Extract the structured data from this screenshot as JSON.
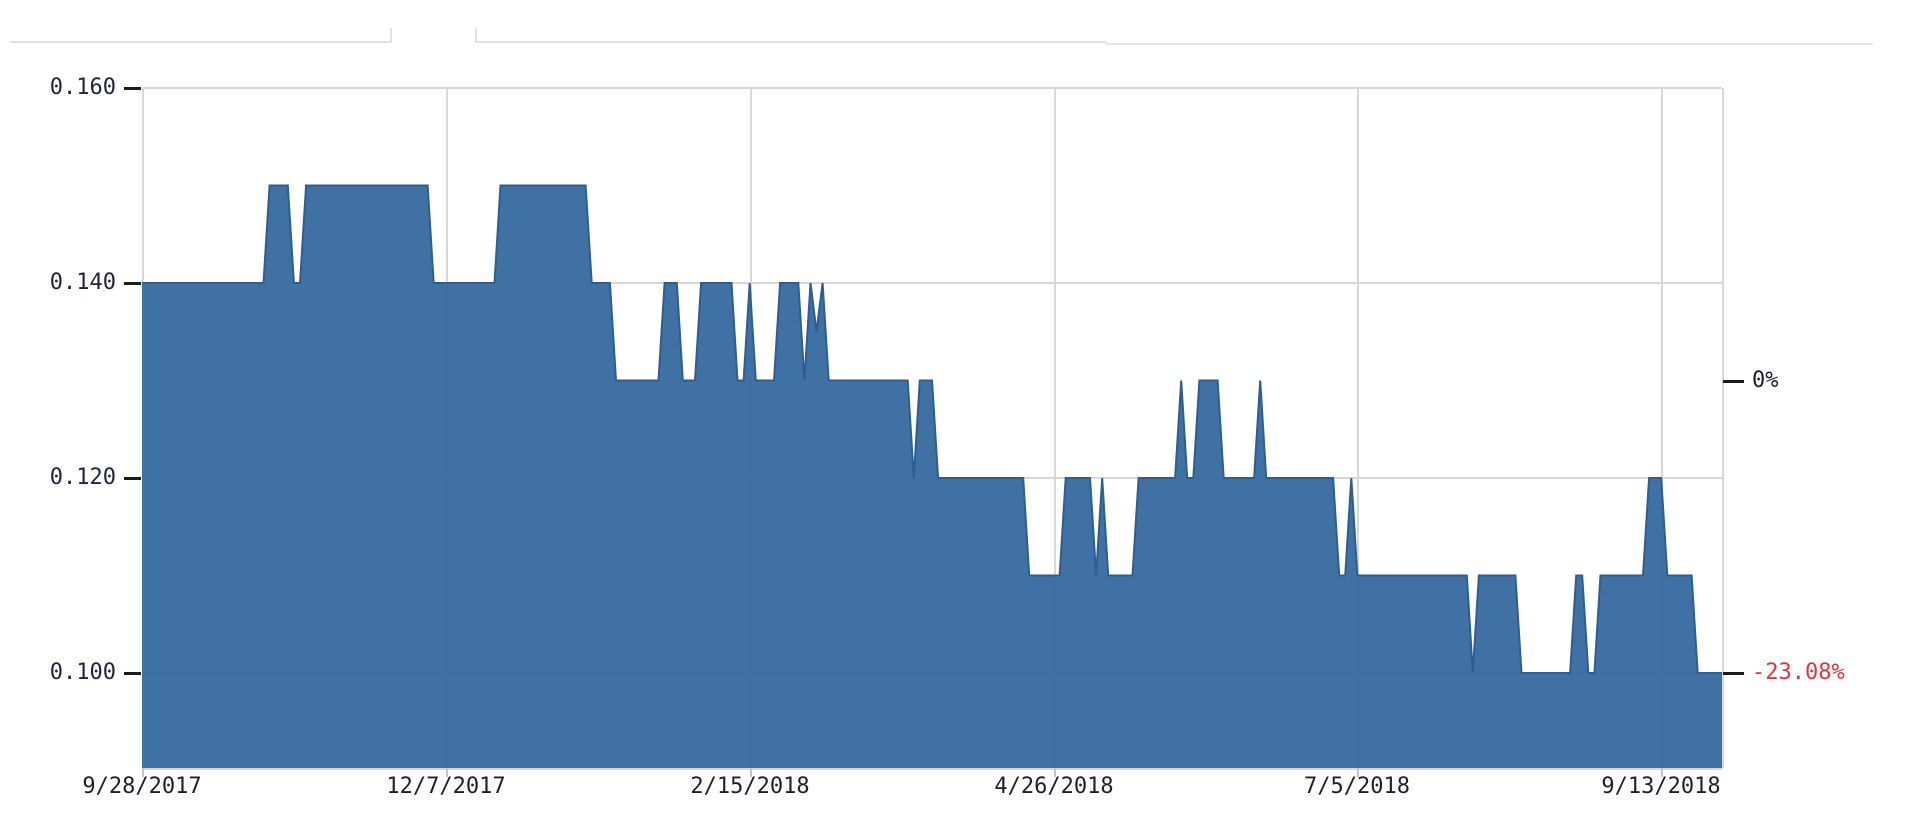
{
  "window": {
    "background": "#ffffff",
    "top_panel_edges": "two cut-off panel bottom borders and one lower right border"
  },
  "chart_data": {
    "type": "area",
    "title": "",
    "xlabel": "",
    "ylabel": "",
    "legend": "none",
    "grid": true,
    "x_tick_labels": [
      "9/28/2017",
      "12/7/2017",
      "2/15/2018",
      "4/26/2018",
      "7/5/2018",
      "9/13/2018"
    ],
    "x_tick_days": [
      0,
      50,
      100,
      150,
      200,
      250
    ],
    "y_tick_labels": [
      "0.100",
      "0.120",
      "0.140",
      "0.160"
    ],
    "y_ticks": [
      0.1,
      0.12,
      0.14,
      0.16
    ],
    "ylim": [
      0.09026,
      0.16
    ],
    "right_axis": {
      "zero_label": "0%",
      "zero_price": 0.13,
      "change_label": "-23.08%",
      "change_price": 0.1,
      "change_color": "#e2333f",
      "zero_color": "#1c1c2a"
    },
    "series": [
      {
        "name": "price",
        "color": "#3a6ca2",
        "stroke": "#2e5e91",
        "runs_days_value": [
          [
            21,
            0.14
          ],
          [
            4,
            0.15
          ],
          [
            2,
            0.14
          ],
          [
            21,
            0.15
          ],
          [
            11,
            0.14
          ],
          [
            15,
            0.15
          ],
          [
            4,
            0.14
          ],
          [
            8,
            0.13
          ],
          [
            3,
            0.14
          ],
          [
            3,
            0.13
          ],
          [
            6,
            0.14
          ],
          [
            2,
            0.13
          ],
          [
            1,
            0.14
          ],
          [
            4,
            0.13
          ],
          [
            4,
            0.14
          ],
          [
            1,
            0.13
          ],
          [
            1,
            0.14
          ],
          [
            1,
            0.135
          ],
          [
            1,
            0.14
          ],
          [
            14,
            0.13
          ],
          [
            1,
            0.12
          ],
          [
            3,
            0.13
          ],
          [
            15,
            0.12
          ],
          [
            6,
            0.11
          ],
          [
            5,
            0.12
          ],
          [
            1,
            0.11
          ],
          [
            1,
            0.12
          ],
          [
            5,
            0.11
          ],
          [
            7,
            0.12
          ],
          [
            1,
            0.13
          ],
          [
            2,
            0.12
          ],
          [
            4,
            0.13
          ],
          [
            6,
            0.12
          ],
          [
            1,
            0.13
          ],
          [
            12,
            0.12
          ],
          [
            2,
            0.11
          ],
          [
            1,
            0.12
          ],
          [
            19,
            0.11
          ],
          [
            1,
            0.1
          ],
          [
            7,
            0.11
          ],
          [
            9,
            0.1
          ],
          [
            2,
            0.11
          ],
          [
            2,
            0.1
          ],
          [
            8,
            0.11
          ],
          [
            3,
            0.12
          ],
          [
            5,
            0.11
          ],
          [
            5,
            0.1
          ]
        ]
      }
    ],
    "theme": {
      "grid_color": "#d8d8d8",
      "axis_tick_color": "#1c1c1c",
      "x_minor_tick_color": "#c4c4c4",
      "y_label_color": "#23233b",
      "x_label_color": "#1f1f2e",
      "panel_edge_color": "#e3e3e3"
    }
  }
}
